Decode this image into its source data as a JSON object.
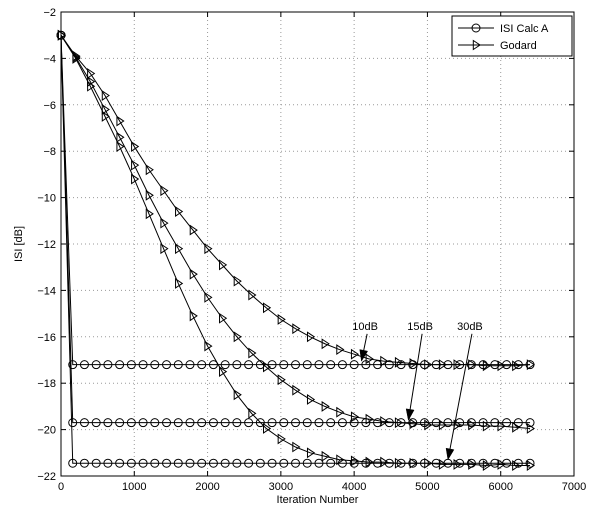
{
  "chart_data": {
    "type": "line",
    "title": "",
    "xlabel": "Iteration Number",
    "ylabel": "ISI [dB]",
    "xlim": [
      0,
      7000
    ],
    "ylim": [
      -22,
      -2
    ],
    "xticks": [
      0,
      1000,
      2000,
      3000,
      4000,
      5000,
      6000,
      7000
    ],
    "yticks": [
      -22,
      -20,
      -18,
      -16,
      -14,
      -12,
      -10,
      -8,
      -6,
      -4,
      -2
    ],
    "grid": true,
    "legend_position": "top-right",
    "legend": [
      {
        "label": "ISI Calc A",
        "marker": "circle"
      },
      {
        "label": "Godard",
        "marker": "triangle-right"
      }
    ],
    "colors": {
      "line": "#000000",
      "grid": "#9a9a9a",
      "background": "#ffffff"
    },
    "series": [
      {
        "name": "ISI Calc A",
        "snr": "10dB",
        "marker": "circle",
        "x_start": 0,
        "x_step": 160,
        "x_end": 6400,
        "value": -17.2,
        "first_value": -3.0
      },
      {
        "name": "ISI Calc A",
        "snr": "15dB",
        "marker": "circle",
        "x_start": 0,
        "x_step": 160,
        "x_end": 6400,
        "value": -19.7,
        "first_value": -3.0
      },
      {
        "name": "ISI Calc A",
        "snr": "30dB",
        "marker": "circle",
        "x_start": 0,
        "x_step": 160,
        "x_end": 6400,
        "value": -21.45,
        "first_value": -3.0
      },
      {
        "name": "Godard",
        "snr": "10dB",
        "marker": "triangle-right",
        "points": [
          [
            0,
            -3.0
          ],
          [
            200,
            -3.9
          ],
          [
            400,
            -4.65
          ],
          [
            600,
            -5.6
          ],
          [
            800,
            -6.7
          ],
          [
            1000,
            -7.8
          ],
          [
            1200,
            -8.8
          ],
          [
            1400,
            -9.7
          ],
          [
            1600,
            -10.6
          ],
          [
            1800,
            -11.4
          ],
          [
            2000,
            -12.2
          ],
          [
            2200,
            -12.9
          ],
          [
            2400,
            -13.6
          ],
          [
            2600,
            -14.2
          ],
          [
            2800,
            -14.75
          ],
          [
            3000,
            -15.25
          ],
          [
            3200,
            -15.65
          ],
          [
            3400,
            -16.0
          ],
          [
            3600,
            -16.3
          ],
          [
            3800,
            -16.55
          ],
          [
            4000,
            -16.75
          ],
          [
            4200,
            -16.95
          ],
          [
            4400,
            -17.05
          ],
          [
            4600,
            -17.1
          ],
          [
            4800,
            -17.15
          ],
          [
            5000,
            -17.2
          ],
          [
            5200,
            -17.2
          ],
          [
            5400,
            -17.2
          ],
          [
            5600,
            -17.2
          ],
          [
            5800,
            -17.25
          ],
          [
            6000,
            -17.25
          ],
          [
            6200,
            -17.25
          ],
          [
            6400,
            -17.2
          ]
        ]
      },
      {
        "name": "Godard",
        "snr": "15dB",
        "marker": "triangle-right",
        "points": [
          [
            0,
            -3.0
          ],
          [
            200,
            -3.95
          ],
          [
            400,
            -5.0
          ],
          [
            600,
            -6.2
          ],
          [
            800,
            -7.4
          ],
          [
            1000,
            -8.6
          ],
          [
            1200,
            -9.9
          ],
          [
            1400,
            -11.1
          ],
          [
            1600,
            -12.2
          ],
          [
            1800,
            -13.3
          ],
          [
            2000,
            -14.3
          ],
          [
            2200,
            -15.2
          ],
          [
            2400,
            -16.0
          ],
          [
            2600,
            -16.7
          ],
          [
            2800,
            -17.3
          ],
          [
            3000,
            -17.85
          ],
          [
            3200,
            -18.3
          ],
          [
            3400,
            -18.7
          ],
          [
            3600,
            -19.0
          ],
          [
            3800,
            -19.25
          ],
          [
            4000,
            -19.45
          ],
          [
            4200,
            -19.55
          ],
          [
            4400,
            -19.65
          ],
          [
            4600,
            -19.7
          ],
          [
            4800,
            -19.75
          ],
          [
            5000,
            -19.8
          ],
          [
            5200,
            -19.8
          ],
          [
            5400,
            -19.8
          ],
          [
            5600,
            -19.8
          ],
          [
            5800,
            -19.85
          ],
          [
            6000,
            -19.85
          ],
          [
            6200,
            -19.9
          ],
          [
            6400,
            -19.95
          ]
        ]
      },
      {
        "name": "Godard",
        "snr": "30dB",
        "marker": "triangle-right",
        "points": [
          [
            0,
            -3.0
          ],
          [
            200,
            -4.0
          ],
          [
            400,
            -5.2
          ],
          [
            600,
            -6.5
          ],
          [
            800,
            -7.8
          ],
          [
            1000,
            -9.2
          ],
          [
            1200,
            -10.7
          ],
          [
            1400,
            -12.2
          ],
          [
            1600,
            -13.7
          ],
          [
            1800,
            -15.1
          ],
          [
            2000,
            -16.4
          ],
          [
            2200,
            -17.5
          ],
          [
            2400,
            -18.5
          ],
          [
            2600,
            -19.3
          ],
          [
            2800,
            -19.95
          ],
          [
            3000,
            -20.4
          ],
          [
            3200,
            -20.75
          ],
          [
            3400,
            -21.0
          ],
          [
            3600,
            -21.15
          ],
          [
            3800,
            -21.3
          ],
          [
            4000,
            -21.35
          ],
          [
            4200,
            -21.4
          ],
          [
            4400,
            -21.4
          ],
          [
            4600,
            -21.45
          ],
          [
            4800,
            -21.45
          ],
          [
            5000,
            -21.45
          ],
          [
            5200,
            -21.5
          ],
          [
            5400,
            -21.5
          ],
          [
            5600,
            -21.5
          ],
          [
            5800,
            -21.55
          ],
          [
            6000,
            -21.5
          ],
          [
            6200,
            -21.55
          ],
          [
            6400,
            -21.55
          ]
        ]
      }
    ],
    "annotations": [
      {
        "text": "10dB",
        "x": 4150,
        "y": -15.7,
        "arrow_to": [
          4100,
          -17.05
        ]
      },
      {
        "text": "15dB",
        "x": 4900,
        "y": -15.7,
        "arrow_to": [
          4740,
          -19.6
        ]
      },
      {
        "text": "30dB",
        "x": 5580,
        "y": -15.7,
        "arrow_to": [
          5280,
          -21.3
        ]
      }
    ]
  }
}
